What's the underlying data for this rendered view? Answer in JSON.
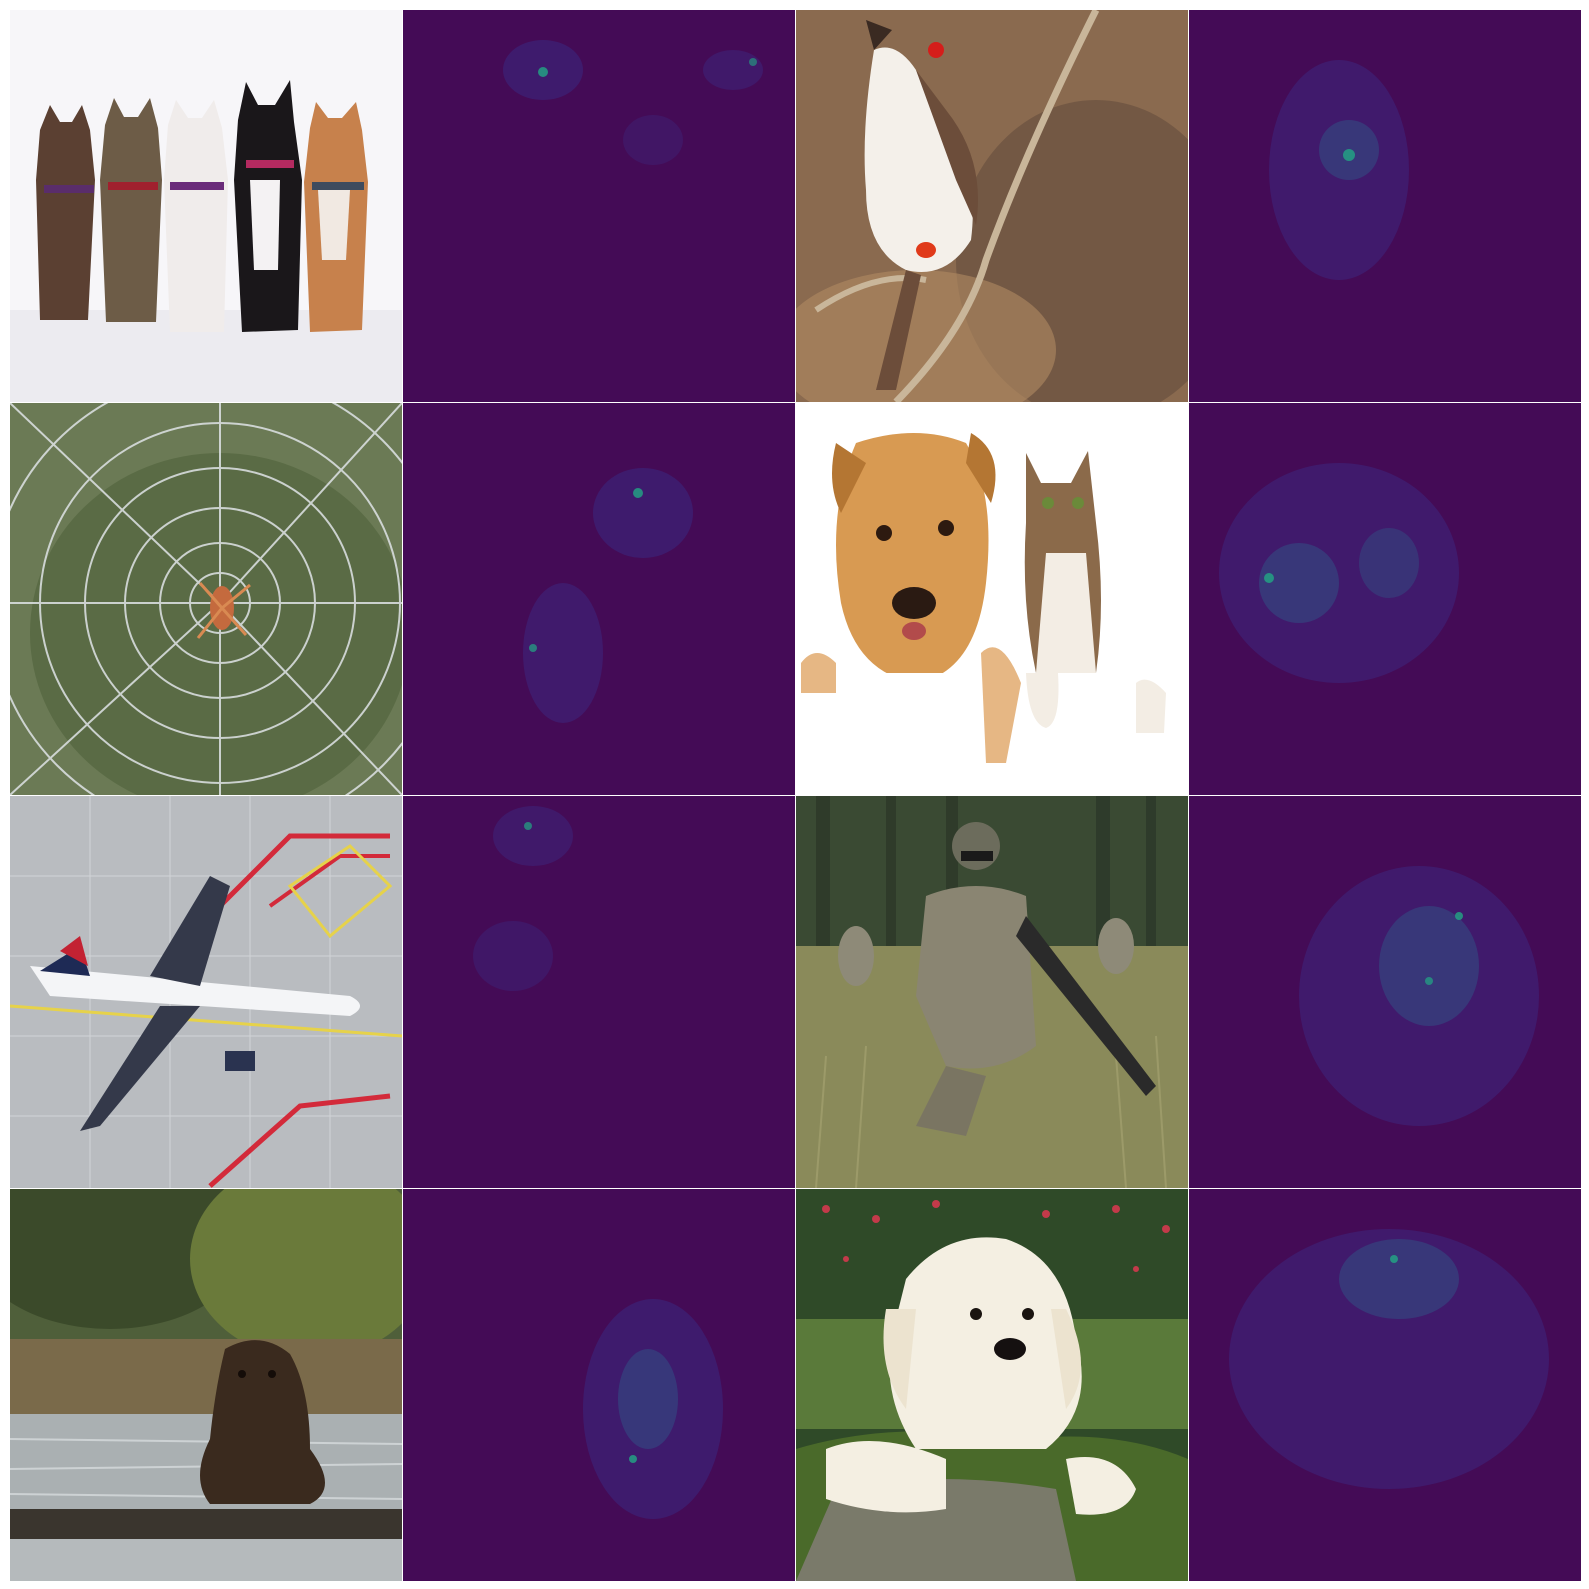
{
  "figure": {
    "rows": [
      {
        "photo1": "cats-row-photo",
        "heatmap1": "saliency-map",
        "photo2": "bird-on-branch-photo",
        "heatmap2": "saliency-map"
      },
      {
        "photo1": "spider-web-photo",
        "heatmap1": "saliency-map",
        "photo2": "dog-and-cat-photo",
        "heatmap2": "saliency-map"
      },
      {
        "photo1": "airplane-photo",
        "heatmap1": "saliency-map",
        "photo2": "soldier-photo",
        "heatmap2": "saliency-map"
      },
      {
        "photo1": "bear-photo",
        "heatmap1": "saliency-map",
        "photo2": "puppy-photo",
        "heatmap2": "saliency-map"
      }
    ],
    "colors": {
      "heatmap_background": "#440b56",
      "heatmap_low": "#3b2a82",
      "heatmap_high": "#22a884"
    }
  }
}
